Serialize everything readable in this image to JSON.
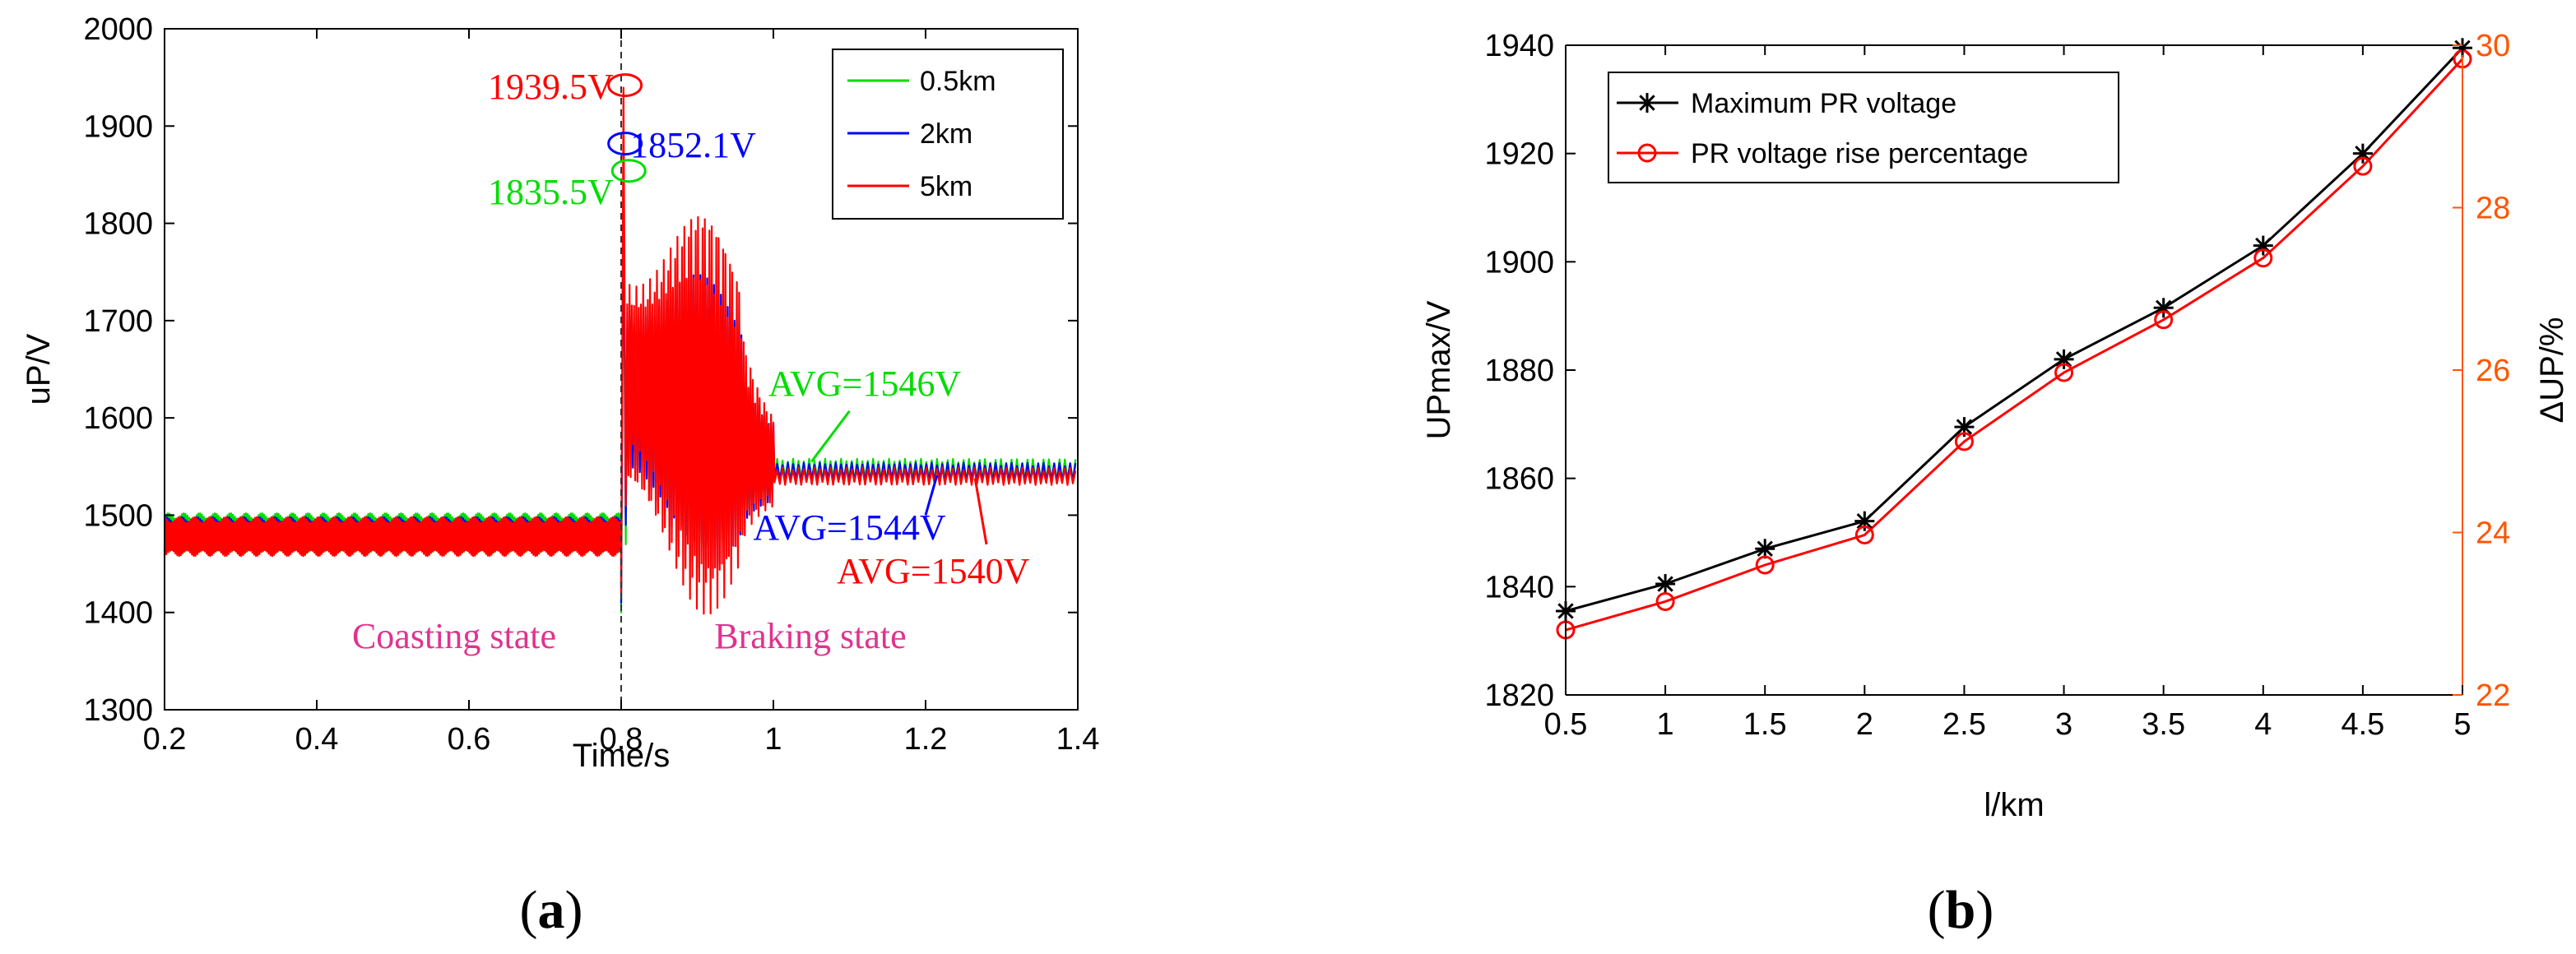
{
  "chart_data": [
    {
      "panel": "a",
      "type": "line",
      "caption": {
        "open": "(",
        "letter": "a",
        "close": ")"
      },
      "xlabel": "Time/s",
      "ylabel": "uP/V",
      "xlim": [
        0.2,
        1.4
      ],
      "ylim": [
        1300,
        2000
      ],
      "xticks": [
        "0.2",
        "0.4",
        "0.6",
        "0.8",
        "1",
        "1.2",
        "1.4"
      ],
      "yticks": [
        "1300",
        "1400",
        "1500",
        "1600",
        "1700",
        "1800",
        "1900",
        "2000"
      ],
      "event_time": 0.8,
      "legend": [
        {
          "name": "0.5km",
          "color": "#00dd00"
        },
        {
          "name": "2km",
          "color": "#0000ff"
        },
        {
          "name": "5km",
          "color": "#ff0000"
        }
      ],
      "series": [
        {
          "name": "0.5km",
          "color": "#00dd00",
          "pre_mean": 1482,
          "pre_amp": 20,
          "peak": 1835.5,
          "avg": 1546,
          "ripple": 12,
          "burst": 0.55
        },
        {
          "name": "2km",
          "color": "#0000ff",
          "pre_mean": 1480,
          "pre_amp": 18,
          "peak": 1852.1,
          "avg": 1544,
          "ripple": 10,
          "burst": 0.7
        },
        {
          "name": "5km",
          "color": "#ff0000",
          "pre_mean": 1478,
          "pre_amp": 20,
          "peak": 1939.5,
          "avg": 1540,
          "ripple": 9,
          "burst": 1.0
        }
      ],
      "annotations": [
        {
          "label": "1939.5V",
          "color": "#ff0000",
          "x": 0.8,
          "y": 1939.5
        },
        {
          "label": "1852.1V",
          "color": "#0000ff",
          "x": 0.8,
          "y": 1880
        },
        {
          "label": "1835.5V",
          "color": "#00dd00",
          "x": 0.8,
          "y": 1852
        },
        {
          "label": "AVG=1546V",
          "color": "#00dd00",
          "x": 1.14,
          "y": 1556
        },
        {
          "label": "AVG=1544V",
          "color": "#0000ff",
          "x": 1.22,
          "y": 1542
        },
        {
          "label": "AVG=1540V",
          "color": "#ff0000",
          "x": 1.28,
          "y": 1538
        }
      ],
      "states": [
        {
          "label": "Coasting state",
          "color": "#e0338f"
        },
        {
          "label": "Braking state",
          "color": "#e0338f"
        }
      ]
    },
    {
      "panel": "b",
      "type": "line",
      "caption": {
        "open": "(",
        "letter": "b",
        "close": ")"
      },
      "xlabel": "l/km",
      "ylabel": "UPmax/V",
      "ylabel_right": "ΔUP/%",
      "right_axis_color": "#ff5500",
      "xlim": [
        0.5,
        5
      ],
      "ylim": [
        1820,
        1940
      ],
      "ylim_right": [
        22,
        30
      ],
      "xticks": [
        "0.5",
        "1",
        "1.5",
        "2",
        "2.5",
        "3",
        "3.5",
        "4",
        "4.5",
        "5"
      ],
      "yticks": [
        "1820",
        "1840",
        "1860",
        "1880",
        "1900",
        "1920",
        "1940"
      ],
      "yticks_right": [
        "22",
        "24",
        "26",
        "28",
        "30"
      ],
      "x": [
        0.5,
        1,
        1.5,
        2,
        2.5,
        3,
        3.5,
        4,
        4.5,
        5
      ],
      "series": [
        {
          "name": "Maximum PR voltage",
          "color": "#000000",
          "marker": "star",
          "axis": "left",
          "values": [
            1835.5,
            1840.5,
            1847,
            1852.1,
            1869.5,
            1882,
            1891.5,
            1903,
            1920,
            1939.5
          ]
        },
        {
          "name": "PR voltage rise percentage",
          "color": "#ff0000",
          "marker": "circle",
          "axis": "right",
          "values": [
            22.8,
            23.15,
            23.6,
            23.97,
            25.12,
            25.97,
            26.62,
            27.38,
            28.51,
            29.83
          ]
        }
      ]
    }
  ]
}
